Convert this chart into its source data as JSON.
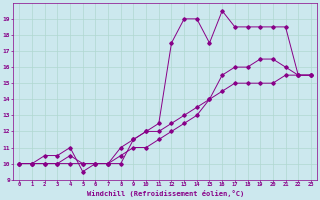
{
  "background_color": "#cce8ee",
  "grid_color": "#aaddcc",
  "line_color": "#880088",
  "xlabel": "Windchill (Refroidissement éolien,°C)",
  "ylim": [
    9,
    20
  ],
  "xlim": [
    -0.5,
    23.5
  ],
  "yticks": [
    9,
    10,
    11,
    12,
    13,
    14,
    15,
    16,
    17,
    18,
    19
  ],
  "xticks": [
    0,
    1,
    2,
    3,
    4,
    5,
    6,
    7,
    8,
    9,
    10,
    11,
    12,
    13,
    14,
    15,
    16,
    17,
    18,
    19,
    20,
    21,
    22,
    23
  ],
  "series": [
    {
      "x": [
        0,
        1,
        2,
        3,
        4,
        5,
        6,
        7,
        8,
        9,
        10,
        11,
        12,
        13,
        14,
        15,
        16,
        17,
        18,
        19,
        20,
        21,
        22,
        23
      ],
      "y": [
        10,
        10,
        10.5,
        10.5,
        11,
        9.5,
        10,
        10,
        10,
        11.5,
        12,
        12.5,
        17.5,
        19,
        19,
        17.5,
        19.5,
        18.5,
        18.5,
        18.5,
        18.5,
        18.5,
        15.5,
        15.5
      ]
    },
    {
      "x": [
        0,
        1,
        2,
        3,
        4,
        5,
        6,
        7,
        8,
        9,
        10,
        11,
        12,
        13,
        14,
        15,
        16,
        17,
        18,
        19,
        20,
        21,
        22,
        23
      ],
      "y": [
        10,
        10,
        10,
        10,
        10.5,
        10,
        10,
        10,
        11,
        11.5,
        12,
        12,
        12.5,
        13,
        13.5,
        14,
        15.5,
        16,
        16,
        16.5,
        16.5,
        16,
        15.5,
        15.5
      ]
    },
    {
      "x": [
        0,
        1,
        2,
        3,
        4,
        5,
        6,
        7,
        8,
        9,
        10,
        11,
        12,
        13,
        14,
        15,
        16,
        17,
        18,
        19,
        20,
        21,
        22,
        23
      ],
      "y": [
        10,
        10,
        10,
        10,
        10,
        10,
        10,
        10,
        10.5,
        11,
        11,
        11.5,
        12,
        12.5,
        13,
        14,
        14.5,
        15,
        15,
        15,
        15,
        15.5,
        15.5,
        15.5
      ]
    }
  ]
}
